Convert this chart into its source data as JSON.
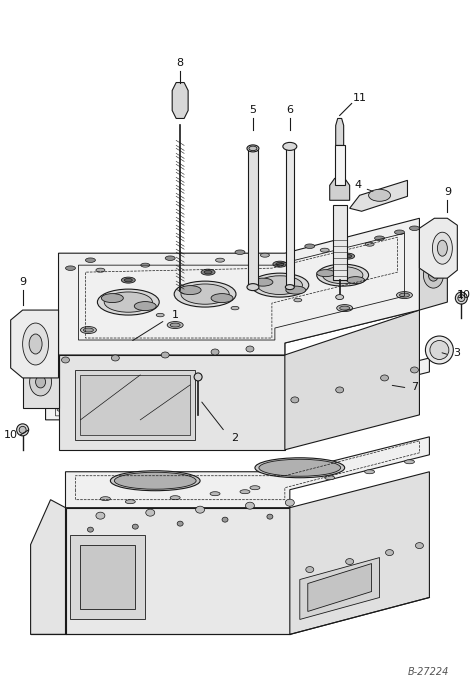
{
  "bg_color": "#ffffff",
  "line_color": "#1a1a1a",
  "label_color": "#111111",
  "fig_width": 4.74,
  "fig_height": 6.93,
  "dpi": 100,
  "watermark": "B-27224",
  "note_text": "B-27224"
}
